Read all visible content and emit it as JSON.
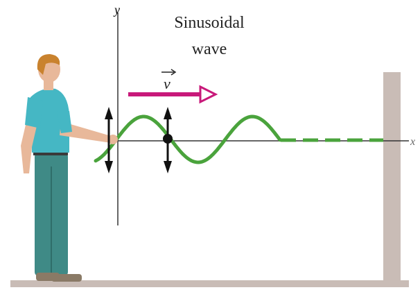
{
  "labels": {
    "y_axis": "y",
    "title_line1": "Sinusoidal",
    "title_line2": "wave",
    "velocity": "v",
    "x_axis": "x"
  }
}
